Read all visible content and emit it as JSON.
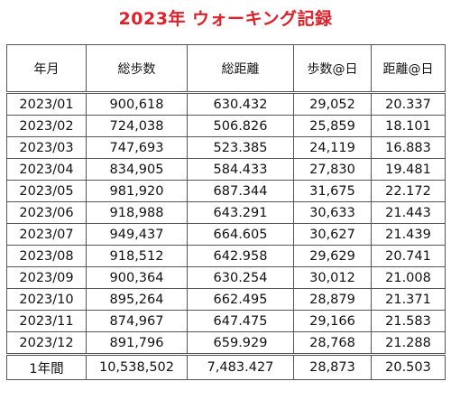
{
  "title": "2023年 ウォーキング記録",
  "headers": [
    "年月",
    "総歩数",
    "総距離",
    "歩数@日",
    "距離@日"
  ],
  "rows": [
    [
      "2023/01",
      "900,618",
      "630.432",
      "29,052",
      "20.337"
    ],
    [
      "2023/02",
      "724,038",
      "506.826",
      "25,859",
      "18.101"
    ],
    [
      "2023/03",
      "747,693",
      "523.385",
      "24,119",
      "16.883"
    ],
    [
      "2023/04",
      "834,905",
      "584.433",
      "27,830",
      "19.481"
    ],
    [
      "2023/05",
      "981,920",
      "687.344",
      "31,675",
      "22.172"
    ],
    [
      "2023/06",
      "918,988",
      "643.291",
      "30,633",
      "21.443"
    ],
    [
      "2023/07",
      "949,437",
      "664.605",
      "30,627",
      "21.439"
    ],
    [
      "2023/08",
      "918,512",
      "642.958",
      "29,629",
      "20.741"
    ],
    [
      "2023/09",
      "900,364",
      "630.254",
      "30,012",
      "21.008"
    ],
    [
      "2023/10",
      "895,264",
      "662.495",
      "28,879",
      "21.371"
    ],
    [
      "2023/11",
      "874,967",
      "647.475",
      "29,166",
      "21.583"
    ],
    [
      "2023/12",
      "891,796",
      "659.929",
      "28,768",
      "21.288"
    ]
  ],
  "footer": [
    "1年間",
    "10,538,502",
    "7,483.427",
    "28,873",
    "20.503"
  ]
}
